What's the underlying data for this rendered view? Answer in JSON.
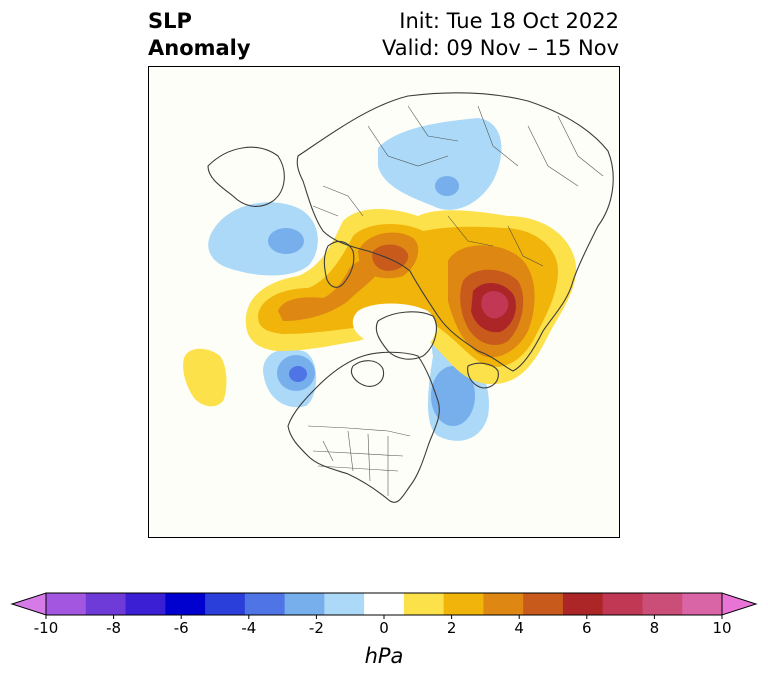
{
  "title": {
    "line1": "SLP",
    "line2": "Anomaly"
  },
  "init": "Init: Tue 18 Oct 2022",
  "valid": "Valid: 09 Nov – 15 Nov",
  "colorbar": {
    "units": "hPa",
    "ticks": [
      "-10",
      "-8",
      "-6",
      "-4",
      "-2",
      "0",
      "2",
      "4",
      "6",
      "8",
      "10"
    ],
    "tick_values": [
      -10,
      -8,
      -6,
      -4,
      -2,
      0,
      2,
      4,
      6,
      8,
      10
    ],
    "range": [
      -10,
      10
    ],
    "extend": "both",
    "colors": [
      "#d57ae6",
      "#a356e0",
      "#6e3ad8",
      "#3b1fd5",
      "#0101cf",
      "#2a3fd9",
      "#4f74e6",
      "#77aeec",
      "#abd9f7",
      "#ffffff",
      "#fce14a",
      "#f1b40a",
      "#de8713",
      "#c85b1c",
      "#ad2627",
      "#c13854",
      "#cb4e78",
      "#d964a6",
      "#e874d6"
    ]
  },
  "map_colors": {
    "background": "#fefef8",
    "land_line": "#3c3c3c"
  },
  "anomaly_features": [
    {
      "name": "low-siberia",
      "sign": "negative",
      "peak_hpa": -3
    },
    {
      "name": "low-europe",
      "sign": "negative",
      "peak_hpa": -3
    },
    {
      "name": "high-arctic-russia",
      "sign": "positive",
      "peak_hpa": 4
    },
    {
      "name": "high-canada-hudson",
      "sign": "positive",
      "peak_hpa": 7
    },
    {
      "name": "high-alaska-arctic",
      "sign": "positive",
      "peak_hpa": 3
    },
    {
      "name": "low-gulf-of-alaska",
      "sign": "negative",
      "peak_hpa": -4
    },
    {
      "name": "low-north-atlantic",
      "sign": "negative",
      "peak_hpa": -3
    },
    {
      "name": "high-north-pacific",
      "sign": "positive",
      "peak_hpa": 1
    }
  ]
}
